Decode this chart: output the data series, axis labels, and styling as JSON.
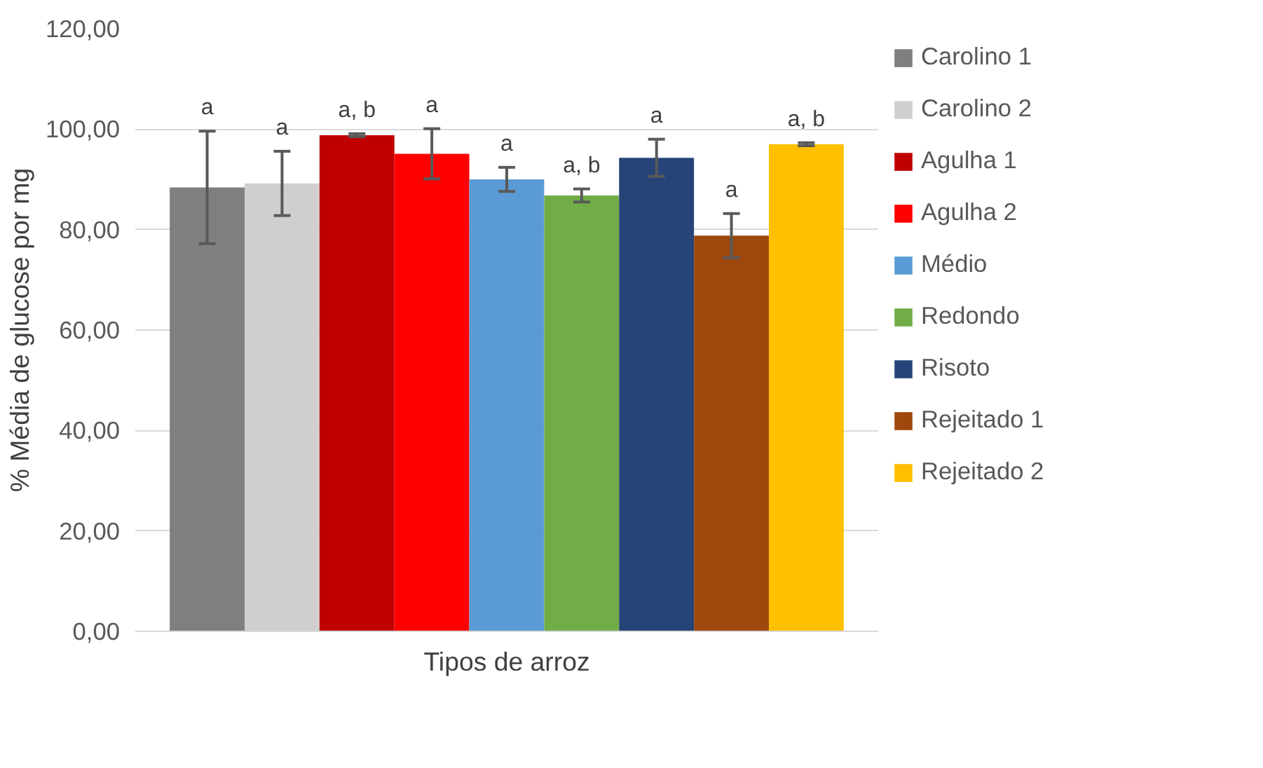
{
  "chart_data": {
    "type": "bar",
    "xlabel": "Tipos de arroz",
    "ylabel": "% Média de glucose por mg",
    "categories": [
      null
    ],
    "series": [
      {
        "name": "Carolino 1",
        "color": "#7f7f7f",
        "values": [
          88.4
        ],
        "errors": [
          11.2
        ]
      },
      {
        "name": "Carolino 2",
        "color": "#d0cece",
        "values": [
          89.2
        ],
        "errors": [
          6.4
        ]
      },
      {
        "name": "Agulha 1",
        "color": "#c00000",
        "values": [
          98.8
        ],
        "errors": [
          0.3
        ]
      },
      {
        "name": "Agulha 2",
        "color": "#ff0000",
        "values": [
          95.1
        ],
        "errors": [
          5.0
        ]
      },
      {
        "name": "Médio",
        "color": "#5b9bd5",
        "values": [
          90.0
        ],
        "errors": [
          2.4
        ]
      },
      {
        "name": "Redondo",
        "color": "#70ad47",
        "values": [
          86.8
        ],
        "errors": [
          1.3
        ]
      },
      {
        "name": "Risoto",
        "color": "#264478",
        "values": [
          94.3
        ],
        "errors": [
          3.7
        ]
      },
      {
        "name": "Rejeitado 1",
        "color": "#9e480e",
        "values": [
          78.8
        ],
        "errors": [
          4.4
        ]
      },
      {
        "name": "Rejeitado 2",
        "color": "#ffc000",
        "values": [
          97.0
        ],
        "errors": [
          0.3
        ]
      }
    ],
    "annotations": [
      "a",
      "a",
      "a, b",
      "a",
      "a",
      "a, b",
      "a",
      "a",
      "a, b"
    ],
    "ylim": [
      0,
      120
    ],
    "yticks": [
      {
        "value": 0,
        "label": "0,00"
      },
      {
        "value": 20,
        "label": "20,00"
      },
      {
        "value": 40,
        "label": "40,00"
      },
      {
        "value": 60,
        "label": "60,00"
      },
      {
        "value": 80,
        "label": "80,00"
      },
      {
        "value": 100,
        "label": "100,00"
      },
      {
        "value": 120,
        "label": "120,00"
      }
    ],
    "grid": "y",
    "legend": "right"
  }
}
